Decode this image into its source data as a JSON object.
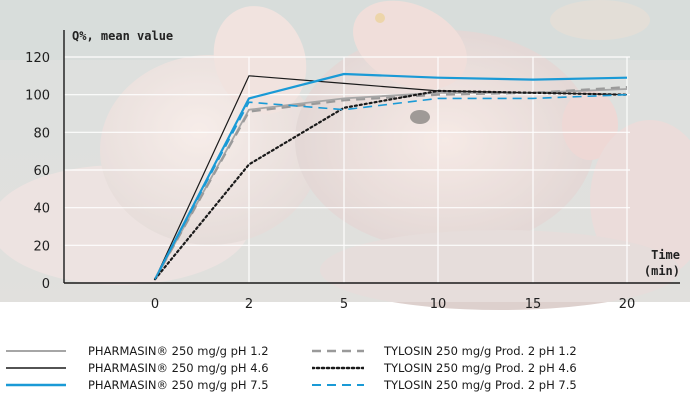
{
  "chart_data": {
    "type": "line",
    "title": "",
    "ylabel": "Q%, mean value",
    "xlabel": "Time\n(min)",
    "xlabel_lines": [
      "Time",
      "(min)"
    ],
    "x_ticks": [
      0,
      2,
      5,
      10,
      15,
      20
    ],
    "y_ticks": [
      0,
      20,
      40,
      60,
      80,
      100,
      120
    ],
    "ylim": [
      0,
      130
    ],
    "grid": true,
    "background": "photo of piglets (semi-transparent overlay)",
    "series": [
      {
        "name": "PHARMASIN® 250 mg/g pH 1.2",
        "color": "#a6a6a6",
        "style": "solid",
        "width": 1.8,
        "x": [
          0,
          2,
          5,
          10,
          15,
          20
        ],
        "y": [
          2,
          92,
          98,
          101,
          101,
          103
        ]
      },
      {
        "name": "PHARMASIN® 250 mg/g pH 4.6",
        "color": "#1a1a1a",
        "style": "solid",
        "width": 1.2,
        "x": [
          0,
          2,
          5,
          10,
          15,
          20
        ],
        "y": [
          2,
          110,
          106,
          102,
          101,
          100
        ]
      },
      {
        "name": "PHARMASIN® 250 mg/g pH 7.5",
        "color": "#1a9ad6",
        "style": "solid",
        "width": 2.2,
        "x": [
          0,
          2,
          5,
          10,
          15,
          20
        ],
        "y": [
          2,
          98,
          111,
          109,
          108,
          109
        ]
      },
      {
        "name": "TYLOSIN 250 mg/g Prod. 2 pH 1.2",
        "color": "#9a9a9a",
        "style": "dashed",
        "width": 2.2,
        "x": [
          0,
          2,
          5,
          10,
          15,
          20
        ],
        "y": [
          2,
          91,
          97,
          100,
          101,
          104
        ]
      },
      {
        "name": "TYLOSIN 250 mg/g Prod. 2 pH 4.6",
        "color": "#1a1a1a",
        "style": "dotted",
        "width": 2.2,
        "x": [
          0,
          2,
          5,
          10,
          15,
          20
        ],
        "y": [
          2,
          63,
          93,
          102,
          101,
          100
        ]
      },
      {
        "name": "TYLOSIN 250 mg/g Prod. 2 pH 7.5",
        "color": "#1a9ad6",
        "style": "dashed",
        "width": 1.6,
        "x": [
          0,
          2,
          5,
          10,
          15,
          20
        ],
        "y": [
          2,
          96,
          92,
          98,
          98,
          100
        ]
      }
    ],
    "legend": {
      "placement": "bottom",
      "columns": 2
    }
  }
}
